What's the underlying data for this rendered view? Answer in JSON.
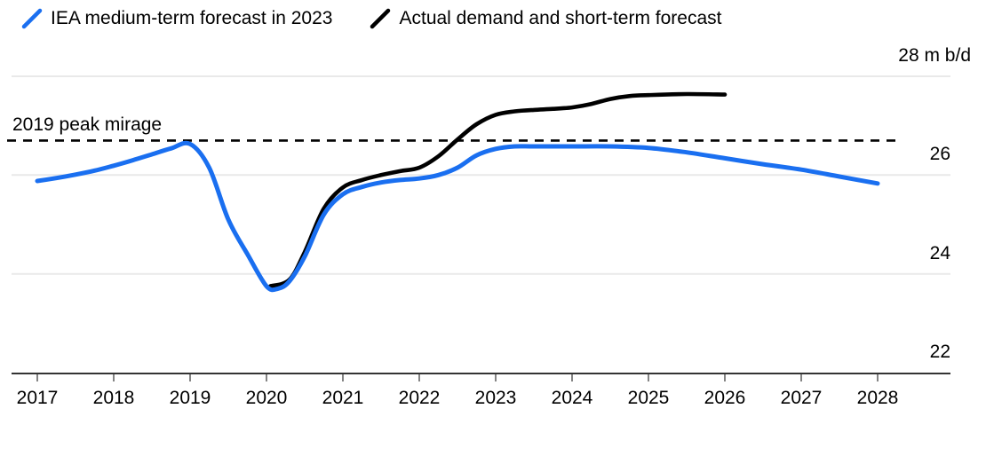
{
  "legend": {
    "items": [
      {
        "label": "IEA medium-term forecast in 2023",
        "color": "#1a6ff0"
      },
      {
        "label": "Actual demand and short-term forecast",
        "color": "#000000"
      }
    ]
  },
  "colors": {
    "accent_blue": "#1a6ff0",
    "series_black": "#000000",
    "gridline": "#e9e9e9",
    "axis": "#333333",
    "tick": "#666666",
    "text": "#000000"
  },
  "chart_data": {
    "type": "line",
    "title": "",
    "xlabel": "",
    "ylabel": "m b/d",
    "ylim": [
      22,
      28
    ],
    "xlim": [
      2016.6,
      2028.3
    ],
    "grid": "horizontal-only",
    "legend_position": "top-left",
    "y_ticks": [
      {
        "value": 28,
        "label": "28 m b/d"
      },
      {
        "value": 26,
        "label": "26"
      },
      {
        "value": 24,
        "label": "24"
      },
      {
        "value": 22,
        "label": "22"
      }
    ],
    "grid_values": [
      28,
      26,
      24
    ],
    "x_ticks": [
      {
        "value": 2017,
        "label": "2017"
      },
      {
        "value": 2018,
        "label": "2018"
      },
      {
        "value": 2019,
        "label": "2019"
      },
      {
        "value": 2020,
        "label": "2020"
      },
      {
        "value": 2021,
        "label": "2021"
      },
      {
        "value": 2022,
        "label": "2022"
      },
      {
        "value": 2023,
        "label": "2023"
      },
      {
        "value": 2024,
        "label": "2024"
      },
      {
        "value": 2025,
        "label": "2025"
      },
      {
        "value": 2026,
        "label": "2026"
      },
      {
        "value": 2027,
        "label": "2027"
      },
      {
        "value": 2028,
        "label": "2028"
      }
    ],
    "annotation_line": {
      "label": "2019 peak mirage",
      "value": 26.7,
      "style": "dashed",
      "color": "#000000"
    },
    "series": [
      {
        "name": "IEA medium-term forecast in 2023",
        "color": "#1a6ff0",
        "points": [
          [
            2017,
            25.88
          ],
          [
            2017.25,
            25.94
          ],
          [
            2017.5,
            26.01
          ],
          [
            2017.75,
            26.09
          ],
          [
            2018,
            26.19
          ],
          [
            2018.25,
            26.3
          ],
          [
            2018.5,
            26.42
          ],
          [
            2018.75,
            26.54
          ],
          [
            2019,
            26.63
          ],
          [
            2019.25,
            26.15
          ],
          [
            2019.5,
            25.1
          ],
          [
            2019.75,
            24.4
          ],
          [
            2020,
            23.75
          ],
          [
            2020.15,
            23.7
          ],
          [
            2020.3,
            23.85
          ],
          [
            2020.5,
            24.35
          ],
          [
            2020.75,
            25.2
          ],
          [
            2021,
            25.61
          ],
          [
            2021.25,
            25.76
          ],
          [
            2021.5,
            25.85
          ],
          [
            2021.75,
            25.9
          ],
          [
            2022,
            25.93
          ],
          [
            2022.25,
            26.0
          ],
          [
            2022.5,
            26.15
          ],
          [
            2022.75,
            26.4
          ],
          [
            2023,
            26.53
          ],
          [
            2023.25,
            26.58
          ],
          [
            2023.5,
            26.58
          ],
          [
            2024,
            26.58
          ],
          [
            2024.5,
            26.58
          ],
          [
            2025,
            26.55
          ],
          [
            2025.5,
            26.46
          ],
          [
            2026,
            26.34
          ],
          [
            2026.5,
            26.22
          ],
          [
            2027,
            26.11
          ],
          [
            2027.5,
            25.97
          ],
          [
            2028,
            25.83
          ]
        ]
      },
      {
        "name": "Actual demand and short-term forecast",
        "color": "#000000",
        "points": [
          [
            2020.05,
            23.75
          ],
          [
            2020.3,
            23.88
          ],
          [
            2020.5,
            24.44
          ],
          [
            2020.75,
            25.32
          ],
          [
            2021,
            25.75
          ],
          [
            2021.25,
            25.9
          ],
          [
            2021.5,
            26.0
          ],
          [
            2021.75,
            26.08
          ],
          [
            2022,
            26.15
          ],
          [
            2022.25,
            26.38
          ],
          [
            2022.5,
            26.72
          ],
          [
            2022.75,
            27.03
          ],
          [
            2023,
            27.22
          ],
          [
            2023.25,
            27.29
          ],
          [
            2023.5,
            27.32
          ],
          [
            2023.75,
            27.34
          ],
          [
            2024,
            27.37
          ],
          [
            2024.25,
            27.44
          ],
          [
            2024.5,
            27.54
          ],
          [
            2024.75,
            27.6
          ],
          [
            2025,
            27.62
          ],
          [
            2025.5,
            27.64
          ],
          [
            2026,
            27.63
          ]
        ]
      }
    ]
  }
}
